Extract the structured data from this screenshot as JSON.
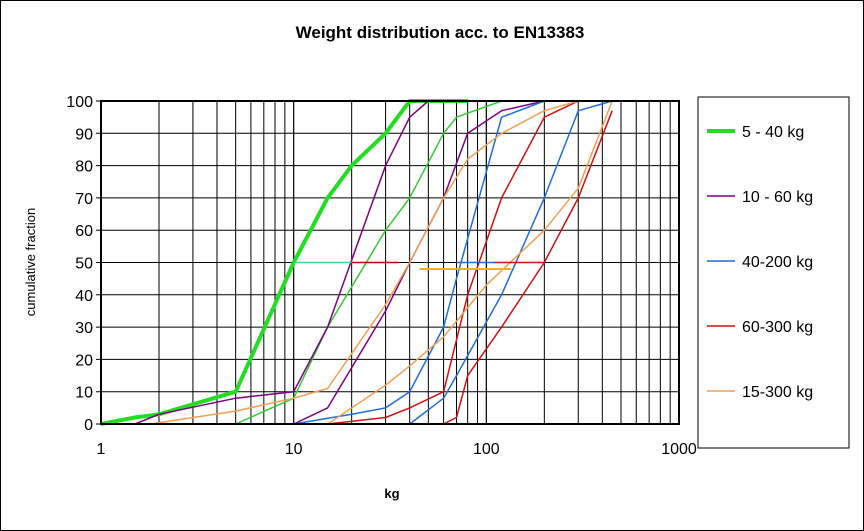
{
  "chart_data": {
    "type": "line",
    "title": "Weight distribution  acc. to EN13383",
    "xlabel": "kg",
    "ylabel": "cumulative fraction",
    "xscale": "log",
    "xlim": [
      1,
      1000
    ],
    "ylim": [
      0,
      100
    ],
    "xticks": [
      "1",
      "10",
      "100",
      "1000"
    ],
    "yticks": [
      "0",
      "10",
      "20",
      "30",
      "40",
      "50",
      "60",
      "70",
      "80",
      "90",
      "100"
    ],
    "grid": true,
    "legend_position": "right",
    "series": [
      {
        "name": "5 - 40 kg",
        "color": "#22dd22",
        "width": 4,
        "legend": true,
        "points": [
          [
            1,
            0
          ],
          [
            1.5,
            2
          ],
          [
            2,
            3
          ],
          [
            5,
            10
          ],
          [
            10,
            50
          ],
          [
            15,
            70
          ],
          [
            20,
            80
          ],
          [
            30,
            90
          ],
          [
            40,
            100
          ],
          [
            80,
            100
          ]
        ]
      },
      {
        "name": "5 - 40 kg (upper)",
        "color": "#33cc33",
        "width": 1.5,
        "legend": false,
        "points": [
          [
            5,
            0
          ],
          [
            10,
            8
          ],
          [
            15,
            30
          ],
          [
            30,
            60
          ],
          [
            40,
            70
          ],
          [
            60,
            90
          ],
          [
            70,
            95
          ],
          [
            120,
            100
          ]
        ]
      },
      {
        "name": "10 - 60 kg",
        "color": "#800080",
        "width": 1.5,
        "legend": true,
        "points": [
          [
            1.5,
            0
          ],
          [
            2,
            3
          ],
          [
            5,
            8
          ],
          [
            10,
            10
          ],
          [
            15,
            30
          ],
          [
            30,
            80
          ],
          [
            40,
            95
          ],
          [
            50,
            100
          ]
        ]
      },
      {
        "name": "10 - 60 kg (upper)",
        "color": "#800080",
        "width": 1.5,
        "legend": false,
        "points": [
          [
            10,
            0
          ],
          [
            15,
            5
          ],
          [
            30,
            35
          ],
          [
            40,
            50
          ],
          [
            60,
            70
          ],
          [
            80,
            90
          ],
          [
            120,
            97
          ],
          [
            200,
            100
          ]
        ]
      },
      {
        "name": "40-200 kg",
        "color": "#1f6fd6",
        "width": 1.5,
        "legend": true,
        "points": [
          [
            10,
            0
          ],
          [
            20,
            3
          ],
          [
            30,
            5
          ],
          [
            40,
            10
          ],
          [
            60,
            30
          ],
          [
            70,
            45
          ],
          [
            120,
            95
          ],
          [
            200,
            100
          ]
        ]
      },
      {
        "name": "40-200 kg (upper)",
        "color": "#1f6fd6",
        "width": 1.5,
        "legend": false,
        "points": [
          [
            40,
            0
          ],
          [
            60,
            8
          ],
          [
            70,
            15
          ],
          [
            120,
            40
          ],
          [
            200,
            70
          ],
          [
            300,
            97
          ],
          [
            450,
            100
          ]
        ]
      },
      {
        "name": "60-300 kg",
        "color": "#d01010",
        "width": 1.5,
        "legend": true,
        "points": [
          [
            15,
            0
          ],
          [
            30,
            2
          ],
          [
            40,
            5
          ],
          [
            60,
            10
          ],
          [
            80,
            40
          ],
          [
            120,
            70
          ],
          [
            200,
            95
          ],
          [
            300,
            100
          ]
        ]
      },
      {
        "name": "60-300 kg (upper)",
        "color": "#d01010",
        "width": 1.5,
        "legend": false,
        "points": [
          [
            60,
            0
          ],
          [
            70,
            2
          ],
          [
            80,
            15
          ],
          [
            120,
            30
          ],
          [
            200,
            50
          ],
          [
            300,
            70
          ],
          [
            450,
            97
          ]
        ]
      },
      {
        "name": "15-300 kg",
        "color": "#f0a050",
        "width": 1.5,
        "legend": true,
        "points": [
          [
            1.8,
            0
          ],
          [
            5,
            4
          ],
          [
            10,
            8
          ],
          [
            15,
            11
          ],
          [
            30,
            37
          ],
          [
            40,
            50
          ],
          [
            60,
            70
          ],
          [
            80,
            82
          ],
          [
            120,
            90
          ],
          [
            200,
            97
          ],
          [
            300,
            100
          ],
          [
            450,
            100
          ]
        ]
      },
      {
        "name": "15-300 kg (upper)",
        "color": "#f0a050",
        "width": 1.5,
        "legend": false,
        "points": [
          [
            15,
            0
          ],
          [
            30,
            12
          ],
          [
            40,
            18
          ],
          [
            60,
            27
          ],
          [
            100,
            43
          ],
          [
            200,
            60
          ],
          [
            300,
            73
          ],
          [
            450,
            100
          ]
        ]
      },
      {
        "name": "median 5-40",
        "color": "#33dd99",
        "width": 1.5,
        "legend": false,
        "points": [
          [
            10,
            50
          ],
          [
            20,
            50
          ]
        ]
      },
      {
        "name": "median 10-60",
        "color": "#c00000",
        "width": 1.5,
        "legend": false,
        "points": [
          [
            20,
            50
          ],
          [
            35,
            50
          ]
        ]
      },
      {
        "name": "median 40-200",
        "color": "#1f6fd6",
        "width": 1.5,
        "legend": false,
        "points": [
          [
            70,
            50
          ],
          [
            110,
            50
          ]
        ]
      },
      {
        "name": "median 60-300",
        "color": "#d01010",
        "width": 1.5,
        "legend": false,
        "points": [
          [
            110,
            50
          ],
          [
            200,
            50
          ]
        ]
      },
      {
        "name": "median 15-300",
        "color": "#f0b020",
        "width": 2,
        "legend": false,
        "points": [
          [
            45,
            48
          ],
          [
            135,
            48
          ]
        ]
      }
    ]
  }
}
